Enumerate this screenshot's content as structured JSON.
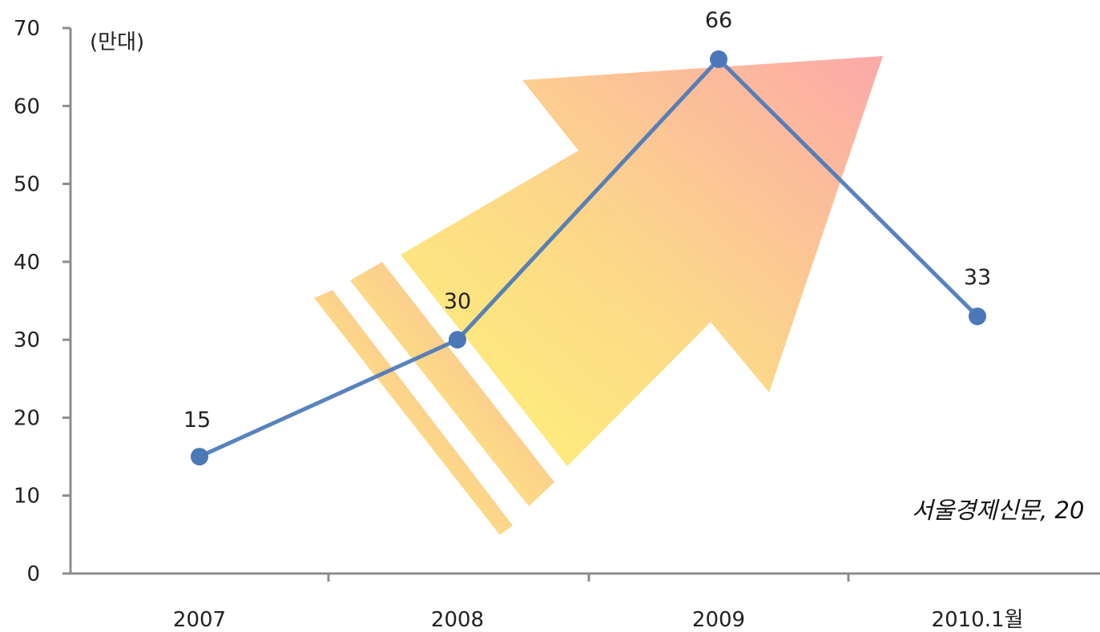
{
  "chart_data": {
    "type": "line",
    "categories": [
      "2007",
      "2008",
      "2009",
      "2010.1월"
    ],
    "series": [
      {
        "values": [
          15,
          30,
          66,
          33
        ]
      }
    ],
    "unit_label": "(만대)",
    "ylim": [
      0,
      70
    ],
    "yticks": [
      0,
      10,
      20,
      30,
      40,
      50,
      60,
      70
    ],
    "ytick_labels": [
      "0",
      "10",
      "20",
      "30",
      "40",
      "50",
      "60",
      "70"
    ],
    "data_labels": [
      "15",
      "30",
      "66",
      "33"
    ],
    "title": "",
    "xlabel": "",
    "ylabel": "",
    "grid": false,
    "legend": "none",
    "line_color": "#4a78b8",
    "axis_color": "#8c8c8c",
    "annotation": "서울경제신문, 20"
  }
}
